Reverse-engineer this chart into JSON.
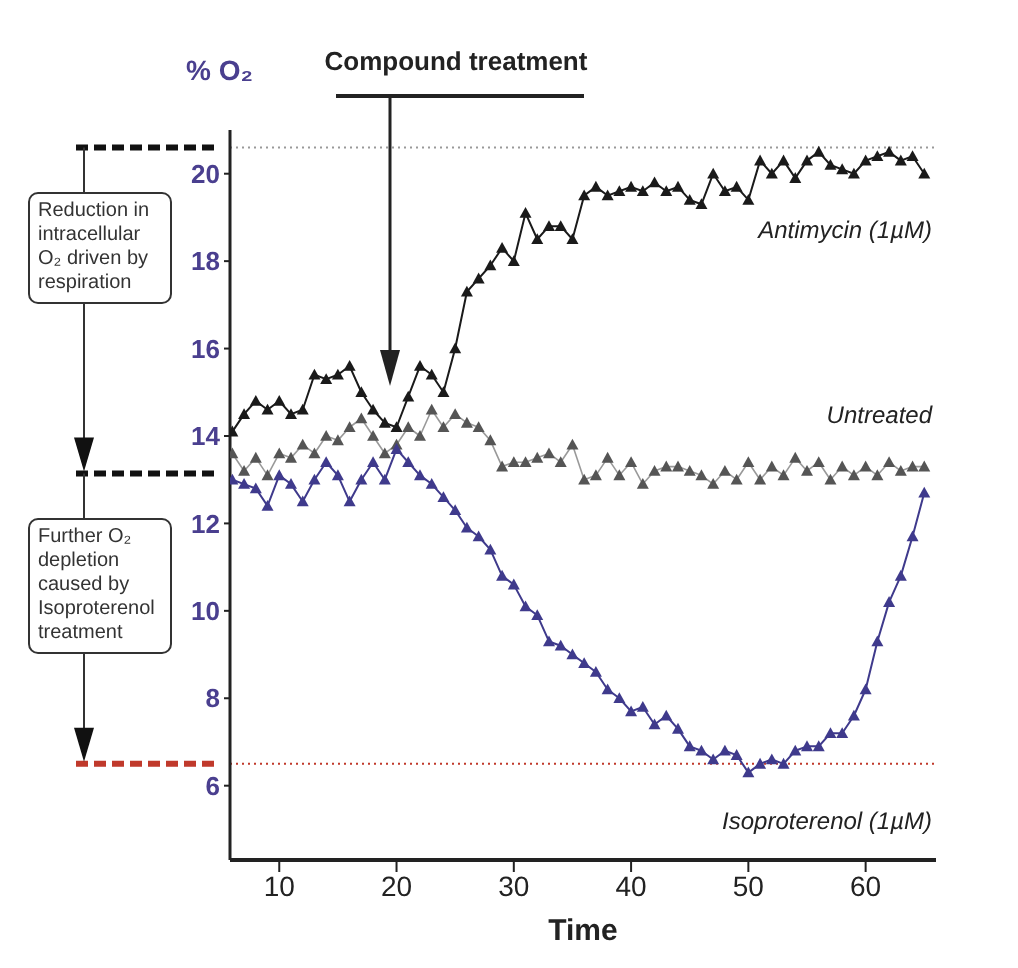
{
  "chart_data": {
    "type": "line",
    "xlabel": "Time",
    "ylabel": "% O₂",
    "x": [
      6,
      7,
      8,
      9,
      10,
      11,
      12,
      13,
      14,
      15,
      16,
      17,
      18,
      19,
      20,
      21,
      22,
      23,
      24,
      25,
      26,
      27,
      28,
      29,
      30,
      31,
      32,
      33,
      34,
      35,
      36,
      37,
      38,
      39,
      40,
      41,
      42,
      43,
      44,
      45,
      46,
      47,
      48,
      49,
      50,
      51,
      52,
      53,
      54,
      55,
      56,
      57,
      58,
      59,
      60,
      61,
      62,
      63,
      64,
      65
    ],
    "series": [
      {
        "name": "Antimycin (1µM)",
        "color": "#1a1a1a",
        "values": [
          14.1,
          14.5,
          14.8,
          14.6,
          14.8,
          14.5,
          14.6,
          15.4,
          15.3,
          15.4,
          15.6,
          15.0,
          14.6,
          14.3,
          14.2,
          14.9,
          15.6,
          15.4,
          15.0,
          16.0,
          17.3,
          17.6,
          17.9,
          18.3,
          18.0,
          19.1,
          18.5,
          18.8,
          18.8,
          18.5,
          19.5,
          19.7,
          19.5,
          19.6,
          19.7,
          19.6,
          19.8,
          19.6,
          19.7,
          19.4,
          19.3,
          20.0,
          19.6,
          19.7,
          19.4,
          20.3,
          20.0,
          20.3,
          19.9,
          20.3,
          20.5,
          20.2,
          20.1,
          20.0,
          20.3,
          20.4,
          20.5,
          20.3,
          20.4,
          20.0
        ]
      },
      {
        "name": "Untreated",
        "color": "#555555",
        "values": [
          13.6,
          13.2,
          13.5,
          13.1,
          13.6,
          13.5,
          13.8,
          13.6,
          14.0,
          13.9,
          14.2,
          14.4,
          14.0,
          13.6,
          13.8,
          14.2,
          14.0,
          14.6,
          14.2,
          14.5,
          14.3,
          14.2,
          13.9,
          13.3,
          13.4,
          13.4,
          13.5,
          13.6,
          13.4,
          13.8,
          13.0,
          13.1,
          13.5,
          13.1,
          13.4,
          12.9,
          13.2,
          13.3,
          13.3,
          13.2,
          13.1,
          12.9,
          13.2,
          13.0,
          13.4,
          13.0,
          13.3,
          13.1,
          13.5,
          13.2,
          13.4,
          13.0,
          13.3,
          13.1,
          13.3,
          13.1,
          13.4,
          13.2,
          13.3,
          13.3
        ]
      },
      {
        "name": "Isoproterenol (1µM)",
        "color": "#3f3a8c",
        "values": [
          13.0,
          12.9,
          12.8,
          12.4,
          13.1,
          12.9,
          12.5,
          13.0,
          13.4,
          13.1,
          12.5,
          13.0,
          13.4,
          13.0,
          13.7,
          13.4,
          13.1,
          12.9,
          12.6,
          12.3,
          11.9,
          11.7,
          11.4,
          10.8,
          10.6,
          10.1,
          9.9,
          9.3,
          9.2,
          9.0,
          8.8,
          8.6,
          8.2,
          8.0,
          7.7,
          7.8,
          7.4,
          7.6,
          7.3,
          6.9,
          6.8,
          6.6,
          6.8,
          6.7,
          6.3,
          6.5,
          6.6,
          6.5,
          6.8,
          6.9,
          6.9,
          7.2,
          7.2,
          7.6,
          8.2,
          9.3,
          10.2,
          10.8,
          11.7,
          12.7
        ]
      }
    ],
    "xlim": [
      5.8,
      66
    ],
    "xticks": [
      10,
      20,
      30,
      40,
      50,
      60
    ],
    "ylim": [
      4.3,
      21
    ],
    "yticks": [
      6,
      8,
      10,
      12,
      14,
      16,
      18,
      20
    ],
    "marker": "triangle",
    "ref_lines": [
      {
        "axis": "y",
        "value": 20.6,
        "color": "#999999",
        "line_style": "dotted"
      },
      {
        "axis": "y",
        "value": 6.5,
        "color": "#c0392b",
        "line_style": "dotted"
      }
    ],
    "annotations": [
      "Reduction in intracellular O₂ driven by respiration",
      "Further O₂ depletion caused by Isoproterenol treatment",
      "Compound treatment"
    ]
  }
}
